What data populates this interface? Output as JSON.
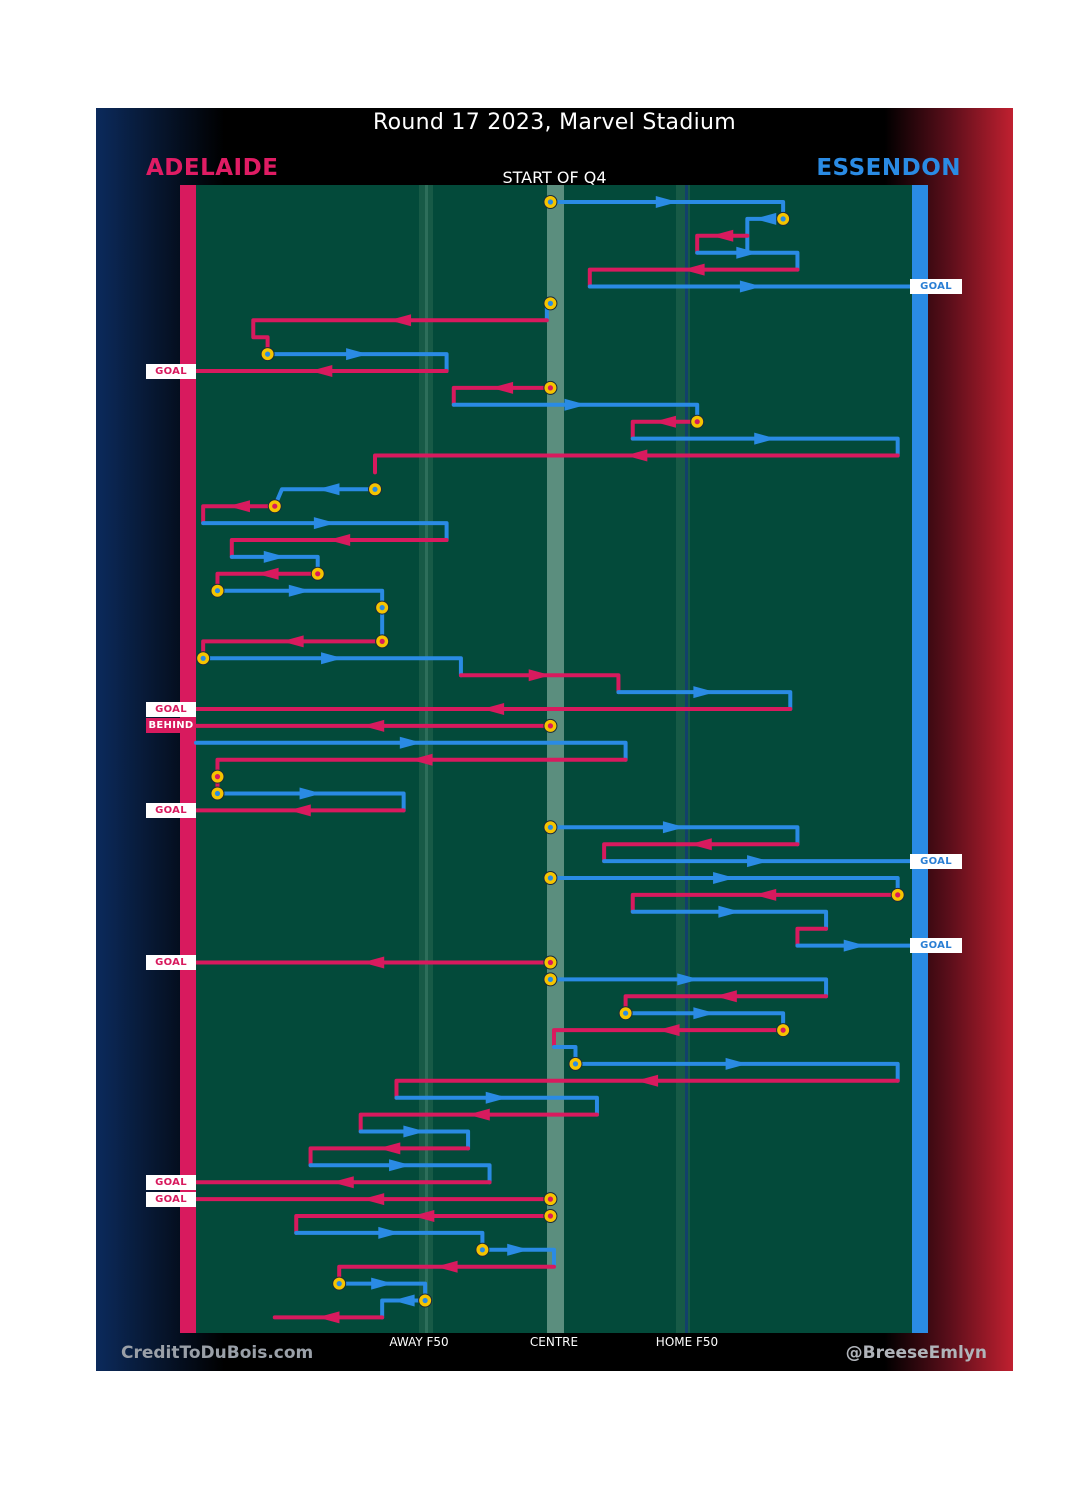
{
  "title": "Round 17 2023, Marvel Stadium",
  "subtitle": "START OF Q4",
  "teams": {
    "left": {
      "name": "ADELAIDE",
      "color": "#d81a5e"
    },
    "right": {
      "name": "ESSENDON",
      "color": "#2a8be4"
    }
  },
  "credits": {
    "left": "CreditToDuBois.com",
    "right": "@BreeseEmlyn"
  },
  "axis_labels": {
    "away": "AWAY F50",
    "centre": "CENTRE",
    "home": "HOME F50"
  },
  "colors": {
    "field": "#034a3a",
    "adelaide": "#d81a5e",
    "essendon": "#2a8be4",
    "marker": "#f5c400"
  },
  "chart_data": {
    "type": "line",
    "description": "Ball movement chain plot, field position 0 (Adelaide goal) to 100 (Essendon goal) over event sequence",
    "x_domain": [
      0,
      100
    ],
    "x_ticks": [
      {
        "value": 31.5,
        "label": "AWAY F50"
      },
      {
        "value": 49.5,
        "label": "CENTRE"
      },
      {
        "value": 67.5,
        "label": "HOME F50"
      }
    ],
    "paths": [
      {
        "team": "ESS",
        "pts": [
          [
            49.5,
            0
          ],
          [
            82,
            0
          ],
          [
            82,
            1
          ]
        ],
        "dots": [
          0,
          2
        ]
      },
      {
        "team": "ESS",
        "pts": [
          [
            82,
            1
          ],
          [
            77,
            1
          ],
          [
            77,
            3
          ]
        ]
      },
      {
        "team": "ADE",
        "pts": [
          [
            77,
            2
          ],
          [
            70,
            2
          ],
          [
            70,
            3
          ]
        ]
      },
      {
        "team": "ESS",
        "pts": [
          [
            70,
            3
          ],
          [
            84,
            3
          ],
          [
            84,
            4
          ]
        ]
      },
      {
        "team": "ADE",
        "pts": [
          [
            84,
            4
          ],
          [
            55,
            4
          ],
          [
            55,
            5
          ]
        ]
      },
      {
        "team": "ESS",
        "pts": [
          [
            55,
            5
          ],
          [
            100,
            5
          ]
        ]
      },
      {
        "team": "ESS",
        "pts": [
          [
            49.5,
            6
          ],
          [
            49,
            6
          ],
          [
            49,
            7
          ]
        ],
        "dots": [
          0
        ]
      },
      {
        "team": "ADE",
        "pts": [
          [
            49,
            7
          ],
          [
            8,
            7
          ],
          [
            8,
            8
          ],
          [
            10,
            8
          ],
          [
            10,
            9
          ]
        ]
      },
      {
        "team": "ESS",
        "pts": [
          [
            10,
            9
          ],
          [
            35,
            9
          ],
          [
            35,
            10
          ]
        ],
        "dots": [
          0
        ]
      },
      {
        "team": "ADE",
        "pts": [
          [
            35,
            10
          ],
          [
            0,
            10
          ]
        ]
      },
      {
        "team": "ADE",
        "pts": [
          [
            49.5,
            11
          ],
          [
            36,
            11
          ],
          [
            36,
            12
          ]
        ],
        "dots": [
          0
        ]
      },
      {
        "team": "ESS",
        "pts": [
          [
            36,
            12
          ],
          [
            70,
            12
          ],
          [
            70,
            13
          ]
        ]
      },
      {
        "team": "ADE",
        "pts": [
          [
            70,
            13
          ],
          [
            61,
            13
          ],
          [
            61,
            14
          ]
        ],
        "dots": [
          0
        ]
      },
      {
        "team": "ESS",
        "pts": [
          [
            61,
            14
          ],
          [
            98,
            14
          ],
          [
            98,
            15
          ]
        ]
      },
      {
        "team": "ADE",
        "pts": [
          [
            98,
            15
          ],
          [
            25,
            15
          ],
          [
            25,
            16
          ]
        ]
      },
      {
        "team": "ESS",
        "pts": [
          [
            25,
            17
          ],
          [
            12,
            17
          ],
          [
            11,
            18
          ]
        ],
        "dots": [
          0
        ]
      },
      {
        "team": "ADE",
        "pts": [
          [
            11,
            18
          ],
          [
            1,
            18
          ],
          [
            1,
            19
          ]
        ],
        "dots": [
          0
        ]
      },
      {
        "team": "ESS",
        "pts": [
          [
            1,
            19
          ],
          [
            35,
            19
          ],
          [
            35,
            20
          ]
        ]
      },
      {
        "team": "ADE",
        "pts": [
          [
            35,
            20
          ],
          [
            5,
            20
          ],
          [
            5,
            21
          ]
        ]
      },
      {
        "team": "ESS",
        "pts": [
          [
            5,
            21
          ],
          [
            17,
            21
          ],
          [
            17,
            22
          ]
        ]
      },
      {
        "team": "ADE",
        "pts": [
          [
            17,
            22
          ],
          [
            3,
            22
          ],
          [
            3,
            23
          ]
        ],
        "dots": [
          0
        ]
      },
      {
        "team": "ESS",
        "pts": [
          [
            3,
            23
          ],
          [
            26,
            23
          ],
          [
            26,
            24
          ]
        ],
        "dots": [
          0
        ]
      },
      {
        "team": "ESS",
        "pts": [
          [
            26,
            24
          ],
          [
            26,
            26
          ]
        ],
        "dots": [
          0,
          1
        ]
      },
      {
        "team": "ADE",
        "pts": [
          [
            26,
            26
          ],
          [
            1,
            26
          ],
          [
            1,
            27
          ]
        ],
        "dots": [
          0
        ]
      },
      {
        "team": "ESS",
        "pts": [
          [
            1,
            27
          ],
          [
            37,
            27
          ],
          [
            37,
            28
          ]
        ],
        "dots": [
          0
        ]
      },
      {
        "team": "ADE",
        "pts": [
          [
            37,
            28
          ],
          [
            59,
            28
          ],
          [
            59,
            29
          ]
        ]
      },
      {
        "team": "ESS",
        "pts": [
          [
            59,
            29
          ],
          [
            83,
            29
          ],
          [
            83,
            30
          ]
        ]
      },
      {
        "team": "ADE",
        "pts": [
          [
            83,
            30
          ],
          [
            0,
            30
          ]
        ]
      },
      {
        "team": "ADE",
        "pts": [
          [
            49.5,
            31
          ],
          [
            0,
            31
          ]
        ],
        "dots": [
          0
        ]
      },
      {
        "team": "ESS",
        "pts": [
          [
            0,
            32
          ],
          [
            60,
            32
          ],
          [
            60,
            33
          ]
        ]
      },
      {
        "team": "ADE",
        "pts": [
          [
            60,
            33
          ],
          [
            3,
            33
          ],
          [
            3,
            34
          ]
        ]
      },
      {
        "team": "ADE",
        "pts": [
          [
            3,
            34
          ],
          [
            3,
            35
          ]
        ],
        "dots": [
          0
        ]
      },
      {
        "team": "ESS",
        "pts": [
          [
            3,
            35
          ],
          [
            29,
            35
          ],
          [
            29,
            36
          ]
        ],
        "dots": [
          0
        ]
      },
      {
        "team": "ADE",
        "pts": [
          [
            29,
            36
          ],
          [
            0,
            36
          ]
        ]
      },
      {
        "team": "ESS",
        "pts": [
          [
            49.5,
            37
          ],
          [
            84,
            37
          ],
          [
            84,
            38
          ]
        ],
        "dots": [
          0
        ]
      },
      {
        "team": "ADE",
        "pts": [
          [
            84,
            38
          ],
          [
            57,
            38
          ],
          [
            57,
            39
          ]
        ]
      },
      {
        "team": "ESS",
        "pts": [
          [
            57,
            39
          ],
          [
            100,
            39
          ]
        ]
      },
      {
        "team": "ESS",
        "pts": [
          [
            49.5,
            40
          ],
          [
            98,
            40
          ],
          [
            98,
            41
          ]
        ],
        "dots": [
          0
        ]
      },
      {
        "team": "ADE",
        "pts": [
          [
            98,
            41
          ],
          [
            61,
            41
          ],
          [
            61,
            42
          ]
        ],
        "dots": [
          0
        ]
      },
      {
        "team": "ESS",
        "pts": [
          [
            61,
            42
          ],
          [
            88,
            42
          ],
          [
            88,
            43
          ]
        ]
      },
      {
        "team": "ADE",
        "pts": [
          [
            88,
            43
          ],
          [
            84,
            43
          ],
          [
            84,
            44
          ]
        ]
      },
      {
        "team": "ESS",
        "pts": [
          [
            84,
            44
          ],
          [
            100,
            44
          ]
        ]
      },
      {
        "team": "ADE",
        "pts": [
          [
            49.5,
            45
          ],
          [
            0,
            45
          ]
        ],
        "dots": [
          0
        ]
      },
      {
        "team": "ESS",
        "pts": [
          [
            49.5,
            46
          ],
          [
            88,
            46
          ],
          [
            88,
            47
          ]
        ],
        "dots": [
          0
        ]
      },
      {
        "team": "ADE",
        "pts": [
          [
            88,
            47
          ],
          [
            60,
            47
          ],
          [
            60,
            48
          ]
        ]
      },
      {
        "team": "ESS",
        "pts": [
          [
            60,
            48
          ],
          [
            82,
            48
          ],
          [
            82,
            49
          ]
        ],
        "dots": [
          0
        ]
      },
      {
        "team": "ADE",
        "pts": [
          [
            82,
            49
          ],
          [
            50,
            49
          ],
          [
            50,
            50
          ]
        ],
        "dots": [
          0
        ]
      },
      {
        "team": "ESS",
        "pts": [
          [
            50,
            50
          ],
          [
            53,
            50
          ],
          [
            53,
            51
          ]
        ]
      },
      {
        "team": "ESS",
        "pts": [
          [
            53,
            51
          ],
          [
            98,
            51
          ],
          [
            98,
            52
          ]
        ],
        "dots": [
          0
        ]
      },
      {
        "team": "ADE",
        "pts": [
          [
            98,
            52
          ],
          [
            28,
            52
          ],
          [
            28,
            53
          ]
        ]
      },
      {
        "team": "ESS",
        "pts": [
          [
            28,
            53
          ],
          [
            56,
            53
          ],
          [
            56,
            54
          ]
        ]
      },
      {
        "team": "ADE",
        "pts": [
          [
            56,
            54
          ],
          [
            23,
            54
          ],
          [
            23,
            55
          ]
        ]
      },
      {
        "team": "ESS",
        "pts": [
          [
            23,
            55
          ],
          [
            38,
            55
          ],
          [
            38,
            56
          ]
        ]
      },
      {
        "team": "ADE",
        "pts": [
          [
            38,
            56
          ],
          [
            16,
            56
          ],
          [
            16,
            57
          ]
        ]
      },
      {
        "team": "ESS",
        "pts": [
          [
            16,
            57
          ],
          [
            41,
            57
          ],
          [
            41,
            58
          ]
        ]
      },
      {
        "team": "ADE",
        "pts": [
          [
            41,
            58
          ],
          [
            0,
            58
          ]
        ]
      },
      {
        "team": "ADE",
        "pts": [
          [
            49.5,
            59
          ],
          [
            0,
            59
          ]
        ],
        "dots": [
          0
        ]
      },
      {
        "team": "ADE",
        "pts": [
          [
            49.5,
            60
          ],
          [
            14,
            60
          ],
          [
            14,
            61
          ]
        ],
        "dots": [
          0
        ]
      },
      {
        "team": "ESS",
        "pts": [
          [
            14,
            61
          ],
          [
            40,
            61
          ],
          [
            40,
            62
          ]
        ]
      },
      {
        "team": "ESS",
        "pts": [
          [
            40,
            62
          ],
          [
            50,
            62
          ],
          [
            50,
            63
          ]
        ],
        "dots": [
          0
        ]
      },
      {
        "team": "ADE",
        "pts": [
          [
            50,
            63
          ],
          [
            20,
            63
          ],
          [
            20,
            64
          ]
        ]
      },
      {
        "team": "ESS",
        "pts": [
          [
            20,
            64
          ],
          [
            32,
            64
          ],
          [
            32,
            65
          ]
        ],
        "dots": [
          0
        ]
      },
      {
        "team": "ESS",
        "pts": [
          [
            32,
            65
          ],
          [
            26,
            65
          ],
          [
            26,
            66
          ]
        ],
        "dots": [
          0
        ]
      },
      {
        "team": "ADE",
        "pts": [
          [
            26,
            66
          ],
          [
            11,
            66
          ]
        ]
      }
    ],
    "outcomes": [
      {
        "row": 5,
        "team": "ESS",
        "label": "GOAL"
      },
      {
        "row": 10,
        "team": "ADE",
        "label": "GOAL"
      },
      {
        "row": 30,
        "team": "ADE",
        "label": "GOAL"
      },
      {
        "row": 31,
        "team": "ADE",
        "label": "BEHIND"
      },
      {
        "row": 36,
        "team": "ADE",
        "label": "GOAL"
      },
      {
        "row": 39,
        "team": "ESS",
        "label": "GOAL"
      },
      {
        "row": 44,
        "team": "ESS",
        "label": "GOAL"
      },
      {
        "row": 45,
        "team": "ADE",
        "label": "GOAL"
      },
      {
        "row": 58,
        "team": "ADE",
        "label": "GOAL"
      },
      {
        "row": 59,
        "team": "ADE",
        "label": "GOAL"
      }
    ]
  }
}
